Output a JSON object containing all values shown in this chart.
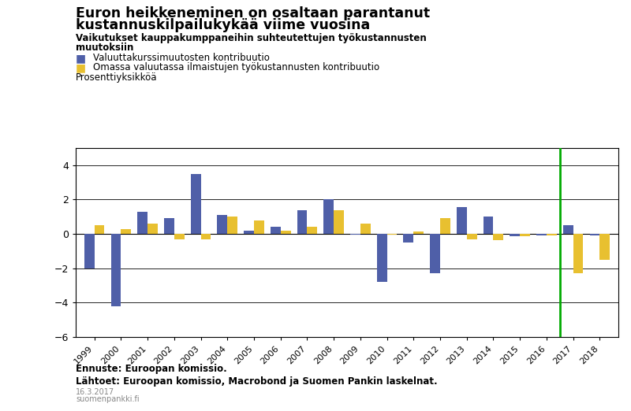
{
  "title_line1": "Euron heikkeneminen on osaltaan parantanut",
  "title_line2": "kustannuskilpailukykää viime vuosina",
  "subtitle_line1": "Vaikutukset kauppakumppaneihin suhteutettujen työkustannusten",
  "subtitle_line2": "muutoksiin",
  "legend1": "Valuuttakurssimuutosten kontribuutio",
  "legend2": "Omassa valuutassa ilmaistujen työkustannusten kontribuutio",
  "ylabel": "Prosenttiyksikköä",
  "footnote1": "Ennuste: Euroopan komissio.",
  "footnote2": "Lähtoet: Euroopan komissio, Macrobond ja Suomen Pankin laskelnat.",
  "footnote3": "16.3.2017",
  "footnote4": "suomenpankki.fi",
  "years": [
    "1999",
    "2000",
    "2001",
    "2002",
    "2003",
    "2004",
    "2005",
    "2006",
    "2007",
    "2008",
    "2009",
    "2010",
    "2011",
    "2012",
    "2013",
    "2014",
    "2015",
    "2016",
    "2017",
    "2018"
  ],
  "blue_values": [
    -2.0,
    -4.2,
    1.3,
    0.9,
    3.5,
    1.1,
    0.2,
    0.4,
    1.4,
    2.0,
    -0.05,
    -2.8,
    -0.5,
    -2.3,
    1.55,
    1.0,
    -0.15,
    -0.1,
    0.5,
    -0.1
  ],
  "yellow_values": [
    0.5,
    0.3,
    0.6,
    -0.3,
    -0.3,
    1.0,
    0.8,
    0.2,
    0.4,
    1.4,
    0.6,
    -0.05,
    0.15,
    0.9,
    -0.3,
    -0.35,
    -0.15,
    -0.1,
    -2.3,
    -1.5
  ],
  "blue_color": "#4f5fa8",
  "yellow_color": "#e8c030",
  "ylim": [
    -6,
    5
  ],
  "yticks": [
    -6,
    -4,
    -2,
    0,
    2,
    4
  ],
  "bar_width": 0.38,
  "background_color": "#ffffff",
  "grid_color": "#000000",
  "green_color": "#00aa00"
}
